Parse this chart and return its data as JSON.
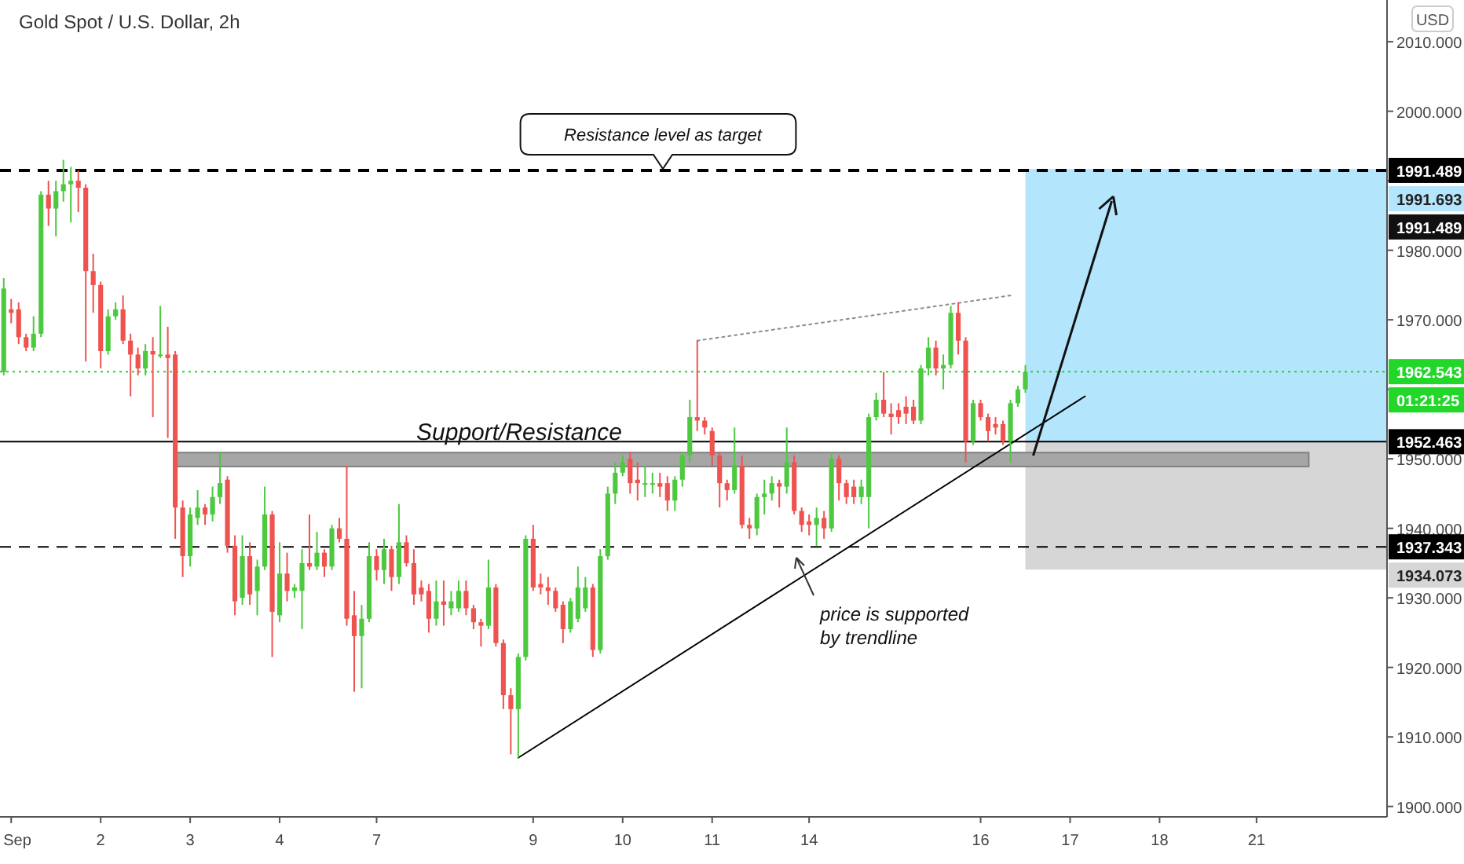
{
  "chart_data": {
    "type": "candlestick",
    "title": "Gold Spot / U.S. Dollar, 2h",
    "ylabel": "USD",
    "ylim": [
      1898.5,
      2016
    ],
    "categories": [
      null,
      "Sep",
      null,
      null,
      null,
      null,
      null,
      null,
      null,
      null,
      null,
      null,
      null,
      "2",
      null,
      null,
      null,
      null,
      null,
      null,
      null,
      null,
      null,
      null,
      null,
      "3",
      null,
      null,
      null,
      null,
      null,
      null,
      null,
      null,
      null,
      null,
      null,
      "4",
      null,
      null,
      null,
      null,
      null,
      null,
      null,
      null,
      null,
      null,
      null,
      null,
      "7",
      null,
      null,
      null,
      null,
      null,
      null,
      null,
      null,
      null,
      null,
      null,
      null,
      null,
      null,
      null,
      null,
      null,
      null,
      null,
      null,
      "9",
      null,
      null,
      null,
      null,
      null,
      null,
      null,
      null,
      null,
      null,
      null,
      "10",
      null,
      null,
      null,
      null,
      null,
      null,
      null,
      null,
      null,
      null,
      null,
      "11",
      null,
      null,
      null,
      null,
      null,
      null,
      null,
      null,
      null,
      null,
      null,
      null,
      "14",
      null,
      null,
      null,
      null,
      null,
      null,
      null,
      null,
      null,
      null,
      null,
      null,
      null,
      null,
      null,
      null,
      null,
      null,
      null,
      null,
      null,
      null,
      "16",
      null,
      null,
      null,
      null,
      null,
      null,
      null,
      null,
      null,
      null,
      null,
      "17",
      null,
      null,
      null,
      null,
      null,
      null,
      null,
      null,
      null,
      null,
      null,
      "18",
      null,
      null,
      null,
      null,
      null,
      null,
      null,
      null,
      null,
      null,
      null,
      null,
      "21",
      null,
      null,
      null,
      null,
      null,
      null,
      null,
      null,
      null,
      null,
      null,
      null,
      null,
      null,
      null,
      null,
      null
    ],
    "yticks": [
      {
        "value": 1900,
        "label": "1900.000"
      },
      {
        "value": 1910,
        "label": "1910.000"
      },
      {
        "value": 1920,
        "label": "1920.000"
      },
      {
        "value": 1930,
        "label": "1930.000"
      },
      {
        "value": 1940,
        "label": "1940.000"
      },
      {
        "value": 1950,
        "label": "1950.000"
      },
      {
        "value": 1960,
        "label": null
      },
      {
        "value": 1970,
        "label": "1970.000"
      },
      {
        "value": 1980,
        "label": "1980.000"
      },
      {
        "value": 1990,
        "label": null
      },
      {
        "value": 2000,
        "label": "2000.000"
      },
      {
        "value": 2010,
        "label": "2010.000"
      }
    ],
    "ohlc": [
      [
        1962.5,
        1976,
        1962,
        1974.5
      ],
      [
        1971.5,
        1973,
        1969.5,
        1971
      ],
      [
        1971.5,
        1972.5,
        1966.5,
        1967.5
      ],
      [
        1967.5,
        1968,
        1965.5,
        1966
      ],
      [
        1966,
        1970.5,
        1965.5,
        1968
      ],
      [
        1968,
        1988.5,
        1967.5,
        1988
      ],
      [
        1988,
        1990,
        1983.5,
        1986
      ],
      [
        1986,
        1990,
        1982,
        1988.5
      ],
      [
        1988.5,
        1993,
        1987,
        1989.5
      ],
      [
        1989.5,
        1992,
        1984,
        1990
      ],
      [
        1990,
        1991.5,
        1985.5,
        1989
      ],
      [
        1989,
        1989.5,
        1964,
        1977
      ],
      [
        1977,
        1979.5,
        1971,
        1975
      ],
      [
        1975,
        1975.5,
        1963,
        1965.5
      ],
      [
        1965.5,
        1971.5,
        1965,
        1970.5
      ],
      [
        1970.5,
        1972.5,
        1970,
        1971.5
      ],
      [
        1971.5,
        1973.5,
        1966.5,
        1967
      ],
      [
        1967,
        1968,
        1959,
        1965
      ],
      [
        1965,
        1966,
        1962,
        1963
      ],
      [
        1963,
        1966.5,
        1962,
        1965.5
      ],
      [
        1965.5,
        1967.5,
        1956,
        1965
      ],
      [
        1965,
        1972,
        1964.5,
        1965
      ],
      [
        1965,
        1969,
        1953,
        1964.5
      ],
      [
        1965,
        1965.5,
        1938.5,
        1943
      ],
      [
        1943,
        1944,
        1933,
        1936
      ],
      [
        1936,
        1943,
        1934.5,
        1942
      ],
      [
        1941.5,
        1945.5,
        1940.5,
        1943
      ],
      [
        1943,
        1943.5,
        1940.5,
        1942
      ],
      [
        1942,
        1946,
        1941,
        1944.5
      ],
      [
        1944.5,
        1951,
        1943.5,
        1946.5
      ],
      [
        1947,
        1947.5,
        1936.5,
        1937.5
      ],
      [
        1937.5,
        1939,
        1927.5,
        1929.5
      ],
      [
        1930,
        1939,
        1929,
        1936
      ],
      [
        1936,
        1938,
        1929,
        1930.5
      ],
      [
        1931,
        1935.5,
        1927.5,
        1934.5
      ],
      [
        1934.5,
        1946,
        1934,
        1942
      ],
      [
        1942,
        1942.5,
        1921.5,
        1928
      ],
      [
        1927.5,
        1938,
        1926.5,
        1933.5
      ],
      [
        1933.5,
        1936.5,
        1929.5,
        1931
      ],
      [
        1931,
        1932,
        1930,
        1931.5
      ],
      [
        1931,
        1937,
        1925.5,
        1935
      ],
      [
        1935,
        1942,
        1934,
        1934.5
      ],
      [
        1934.5,
        1939.5,
        1934,
        1936.5
      ],
      [
        1936.5,
        1937,
        1933,
        1934.5
      ],
      [
        1934.5,
        1940.5,
        1934,
        1940
      ],
      [
        1940,
        1941.5,
        1938,
        1938.5
      ],
      [
        1938.5,
        1949,
        1926,
        1927
      ],
      [
        1927.5,
        1931,
        1916.5,
        1924.5
      ],
      [
        1924.5,
        1929,
        1917,
        1927
      ],
      [
        1927,
        1938,
        1926.5,
        1936
      ],
      [
        1936,
        1937,
        1932.5,
        1934
      ],
      [
        1934,
        1938.5,
        1932,
        1937
      ],
      [
        1937,
        1937.5,
        1931,
        1933
      ],
      [
        1933,
        1943.5,
        1932,
        1938
      ],
      [
        1938,
        1939,
        1934.5,
        1935
      ],
      [
        1935,
        1937,
        1929,
        1930.5
      ],
      [
        1931.5,
        1932.5,
        1929.5,
        1930.5
      ],
      [
        1931,
        1932,
        1925,
        1927
      ],
      [
        1927,
        1932.5,
        1926,
        1929.5
      ],
      [
        1929.5,
        1932.5,
        1926,
        1929
      ],
      [
        1928.5,
        1931,
        1927.5,
        1929.5
      ],
      [
        1928.5,
        1932.5,
        1928,
        1931
      ],
      [
        1931,
        1932.5,
        1927.5,
        1928.5
      ],
      [
        1928.5,
        1929,
        1925.5,
        1926.5
      ],
      [
        1926.5,
        1927,
        1923,
        1926
      ],
      [
        1926,
        1935.5,
        1925.5,
        1931.5
      ],
      [
        1931.5,
        1932,
        1923,
        1923.5
      ],
      [
        1923.5,
        1924,
        1914,
        1916
      ],
      [
        1916,
        1917,
        1907.5,
        1914
      ],
      [
        1914,
        1922,
        1907,
        1921.5
      ],
      [
        1921.5,
        1939,
        1921,
        1938.5
      ],
      [
        1938.5,
        1940.5,
        1931,
        1931.5
      ],
      [
        1932,
        1933.5,
        1930.5,
        1931.5
      ],
      [
        1931.5,
        1933,
        1929,
        1931
      ],
      [
        1931,
        1931.5,
        1928,
        1928.5
      ],
      [
        1929,
        1929.5,
        1923.5,
        1925.5
      ],
      [
        1925.5,
        1930,
        1925,
        1929.5
      ],
      [
        1927,
        1934.5,
        1926.5,
        1931.5
      ],
      [
        1928.5,
        1933,
        1928,
        1931.5
      ],
      [
        1931.5,
        1932,
        1921.5,
        1922.5
      ],
      [
        1922.5,
        1937,
        1922,
        1936
      ],
      [
        1936,
        1946,
        1935.5,
        1945
      ],
      [
        1945,
        1949.5,
        1943.5,
        1948
      ],
      [
        1948,
        1950.5,
        1947.5,
        1949.5
      ],
      [
        1950,
        1951,
        1945,
        1946.5
      ],
      [
        1947,
        1949.5,
        1944,
        1946.5
      ],
      [
        1946.5,
        1949,
        1944.5,
        1946.5
      ],
      [
        1946.5,
        1948,
        1945,
        1946.5
      ],
      [
        1946.5,
        1948,
        1944.5,
        1946
      ],
      [
        1946.5,
        1947.5,
        1942.5,
        1944
      ],
      [
        1944,
        1947.5,
        1942.5,
        1947
      ],
      [
        1947,
        1951,
        1946,
        1950.5
      ],
      [
        1950.5,
        1958.5,
        1949.5,
        1956
      ],
      [
        1956,
        1967,
        1954,
        1955.5
      ],
      [
        1955.5,
        1956,
        1953.5,
        1954.5
      ],
      [
        1954,
        1954.5,
        1949,
        1950.5
      ],
      [
        1950.5,
        1951,
        1943,
        1946.5
      ],
      [
        1946.5,
        1947,
        1944,
        1945.5
      ],
      [
        1945.5,
        1954.5,
        1945,
        1949
      ],
      [
        1949,
        1950.5,
        1940,
        1940.5
      ],
      [
        1940.5,
        1941.5,
        1938.5,
        1940
      ],
      [
        1940,
        1945,
        1939,
        1944.5
      ],
      [
        1944.5,
        1947,
        1942,
        1945
      ],
      [
        1945,
        1947.5,
        1944,
        1946.5
      ],
      [
        1946.5,
        1947,
        1943,
        1946
      ],
      [
        1946,
        1954.5,
        1945,
        1949.5
      ],
      [
        1949.5,
        1950.5,
        1942,
        1942.5
      ],
      [
        1942.5,
        1943,
        1939.5,
        1940.5
      ],
      [
        1941,
        1942,
        1939,
        1940.5
      ],
      [
        1940.5,
        1943,
        1937.5,
        1941.5
      ],
      [
        1941.5,
        1942.5,
        1938.5,
        1940
      ],
      [
        1940,
        1951,
        1939.5,
        1950
      ],
      [
        1950,
        1950.5,
        1944,
        1946.5
      ],
      [
        1946.5,
        1947,
        1943.5,
        1944.5
      ],
      [
        1946,
        1947,
        1943.5,
        1944.5
      ],
      [
        1944.5,
        1947,
        1943.5,
        1946
      ],
      [
        1944.5,
        1956.5,
        1940,
        1956
      ],
      [
        1956,
        1959.5,
        1955.5,
        1958.5
      ],
      [
        1958.5,
        1962.5,
        1956,
        1956.5
      ],
      [
        1956.5,
        1958,
        1953.5,
        1956
      ],
      [
        1957,
        1958,
        1955,
        1956
      ],
      [
        1957.5,
        1959,
        1955,
        1956.5
      ],
      [
        1957.5,
        1958.5,
        1955,
        1955.5
      ],
      [
        1955.5,
        1963.5,
        1955,
        1963
      ],
      [
        1963,
        1967.5,
        1962,
        1966
      ],
      [
        1966,
        1967,
        1962,
        1963
      ],
      [
        1963,
        1965,
        1960,
        1963.5
      ],
      [
        1963.5,
        1972,
        1963,
        1971
      ],
      [
        1971,
        1972.5,
        1965,
        1967
      ],
      [
        1967,
        1967.5,
        1949.5,
        1952.5
      ],
      [
        1952.5,
        1958.5,
        1952,
        1958
      ],
      [
        1958,
        1958.5,
        1955.5,
        1956
      ],
      [
        1956,
        1956.5,
        1952.5,
        1954
      ],
      [
        1955,
        1956,
        1953.5,
        1954.5
      ],
      [
        1955,
        1955.5,
        1952,
        1952.5
      ],
      [
        1952.5,
        1958.5,
        1949.5,
        1958
      ],
      [
        1958,
        1960.5,
        1957.5,
        1960
      ],
      [
        1960,
        1963.5,
        1959.5,
        1962.5
      ],
      null,
      null,
      null,
      null,
      null,
      null,
      null,
      null,
      null,
      null,
      null,
      null,
      null,
      null,
      null,
      null,
      null,
      null,
      null,
      null,
      null,
      null,
      null,
      null,
      null,
      null,
      null,
      null,
      null,
      null,
      null,
      null,
      null,
      null,
      null,
      null,
      null,
      null,
      null,
      null,
      null,
      null,
      null,
      null,
      null,
      null,
      null,
      null
    ],
    "series": [
      {
        "type": "line",
        "color": "#000000",
        "line_style": "solid",
        "values": [
          null,
          null,
          null,
          null,
          null,
          null,
          null,
          null,
          null,
          null,
          null,
          null,
          null,
          null,
          null,
          null,
          null,
          null,
          null,
          null,
          null,
          null,
          null,
          null,
          null,
          null,
          null,
          null,
          null,
          null,
          null,
          null,
          null,
          null,
          null,
          null,
          null,
          null,
          null,
          null,
          null,
          null,
          null,
          null,
          null,
          null,
          null,
          null,
          null,
          null,
          null,
          null,
          null,
          null,
          null,
          null,
          null,
          null,
          null,
          null,
          null,
          null,
          null,
          null,
          null,
          null,
          null,
          null,
          null,
          1907,
          null,
          null,
          null,
          null,
          null,
          null,
          null,
          null,
          null,
          null,
          null,
          null,
          null,
          null,
          null,
          null,
          null,
          null,
          null,
          null,
          null,
          null,
          null,
          null,
          null,
          null,
          null,
          null,
          null,
          null,
          null,
          null,
          null,
          null,
          null,
          null,
          null,
          null,
          null,
          null,
          null,
          null,
          null,
          null,
          null,
          null,
          null,
          null,
          null,
          null,
          null,
          null,
          null,
          null,
          null,
          null,
          null,
          null,
          null,
          null,
          null,
          null,
          null,
          null,
          null,
          null,
          null,
          null,
          null,
          null,
          null,
          null,
          null,
          null,
          null,
          1959,
          null,
          null,
          null,
          null,
          null,
          null,
          null,
          null,
          null,
          null,
          null,
          null,
          null,
          null,
          null,
          null,
          null,
          null,
          null,
          null,
          null,
          null,
          null,
          null,
          null,
          null,
          null,
          null,
          null,
          null,
          null,
          null,
          null,
          null,
          null,
          null,
          null,
          null,
          null,
          null
        ]
      },
      {
        "type": "line",
        "color": "#8c8c8c",
        "line_style": "dotted",
        "values": [
          null,
          null,
          null,
          null,
          null,
          null,
          null,
          null,
          null,
          null,
          null,
          null,
          null,
          null,
          null,
          null,
          null,
          null,
          null,
          null,
          null,
          null,
          null,
          null,
          null,
          null,
          null,
          null,
          null,
          null,
          null,
          null,
          null,
          null,
          null,
          null,
          null,
          null,
          null,
          null,
          null,
          null,
          null,
          null,
          null,
          null,
          null,
          null,
          null,
          null,
          null,
          null,
          null,
          null,
          null,
          null,
          null,
          null,
          null,
          null,
          null,
          null,
          null,
          null,
          null,
          null,
          null,
          null,
          null,
          null,
          null,
          null,
          null,
          null,
          null,
          null,
          null,
          null,
          null,
          null,
          null,
          null,
          null,
          null,
          null,
          null,
          null,
          null,
          null,
          null,
          null,
          null,
          null,
          1967,
          null,
          null,
          null,
          null,
          null,
          null,
          null,
          null,
          null,
          null,
          null,
          null,
          null,
          null,
          null,
          null,
          null,
          null,
          null,
          null,
          null,
          null,
          null,
          null,
          null,
          null,
          null,
          null,
          null,
          null,
          null,
          null,
          null,
          null,
          null,
          null,
          null,
          null,
          null,
          null,
          null,
          1973.5,
          null,
          null,
          null,
          null,
          null,
          null,
          null,
          null,
          null,
          null,
          null,
          null,
          null,
          null,
          null,
          null,
          null,
          null,
          null,
          null,
          null,
          null,
          null,
          null,
          null,
          null,
          null,
          null,
          null,
          null,
          null,
          null,
          null,
          null,
          null,
          null,
          null,
          null,
          null,
          null,
          null,
          null,
          null,
          null,
          null,
          null,
          null,
          null,
          null,
          null
        ]
      }
    ],
    "bands": [
      {
        "axis": "y",
        "from": 1952.463,
        "to": 1991.693,
        "label": "1991.693",
        "color": "#b3e5fc"
      },
      {
        "axis": "y",
        "from": 1934.073,
        "to": 1952.463,
        "label": "1934.073",
        "color": "#d6d6d6"
      },
      {
        "axis": "y",
        "from": 1948.9,
        "to": 1950.9,
        "color": "#a6a6a6"
      }
    ],
    "ref_lines": [
      {
        "axis": "y",
        "value": 1991.489,
        "label": "1991.489",
        "color": "#000000",
        "line_style": "dashed"
      },
      {
        "axis": "y",
        "value": 1962.543,
        "label": "1962.543",
        "color": "#22d62a",
        "line_style": "dotted"
      },
      {
        "axis": "y",
        "value": 1952.463,
        "label": "1952.463",
        "color": "#000000",
        "line_style": "solid"
      },
      {
        "axis": "y",
        "value": 1937.343,
        "label": "1937.343",
        "color": "#000000",
        "line_style": "dashed"
      }
    ],
    "annotations": [
      {
        "text": "Support/Resistance",
        "y": 1952.7
      },
      "Resistance level as target",
      "price is supported\nby trendline",
      "1991.489",
      "01:21:25"
    ]
  }
}
